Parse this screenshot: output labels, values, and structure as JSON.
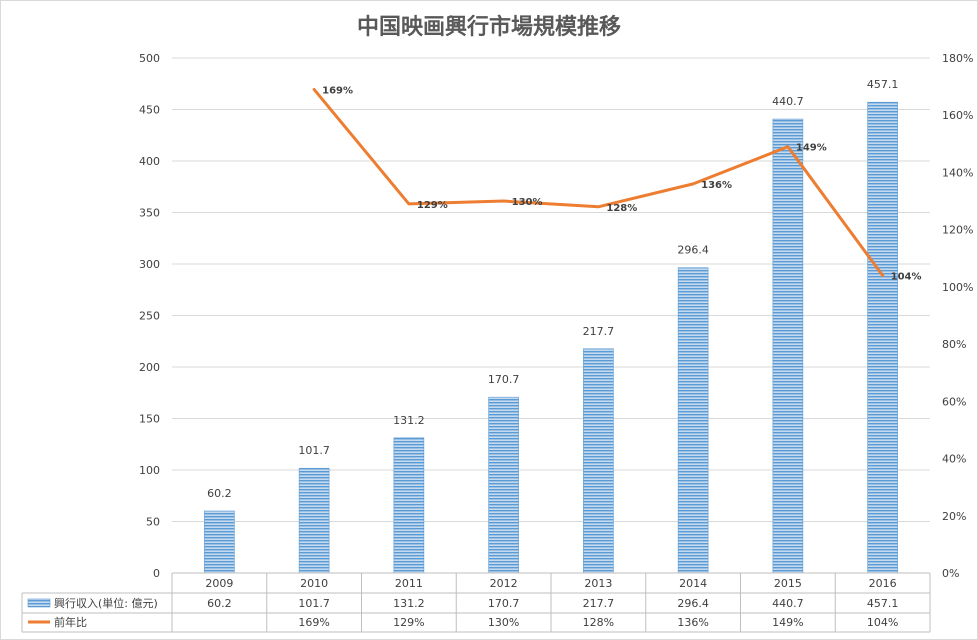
{
  "chart_data": {
    "type": "bar",
    "title": "中国映画興行市場規模推移",
    "categories": [
      "2009",
      "2010",
      "2011",
      "2012",
      "2013",
      "2014",
      "2015",
      "2016"
    ],
    "series": [
      {
        "name": "興行収入(単位: 億元)",
        "type": "bar",
        "axis": "left",
        "values": [
          60.2,
          101.7,
          131.2,
          170.7,
          217.7,
          296.4,
          440.7,
          457.1
        ],
        "labels": [
          "60.2",
          "101.7",
          "131.2",
          "170.7",
          "217.7",
          "296.4",
          "440.7",
          "457.1"
        ],
        "color": "#5b9bd5"
      },
      {
        "name": "前年比",
        "type": "line",
        "axis": "right",
        "values": [
          null,
          169,
          129,
          130,
          128,
          136,
          149,
          104
        ],
        "labels": [
          "",
          "169%",
          "129%",
          "130%",
          "128%",
          "136%",
          "149%",
          "104%"
        ],
        "color": "#ed7d31"
      }
    ],
    "y_left": {
      "min": 0,
      "max": 500,
      "ticks": [
        "0",
        "50",
        "100",
        "150",
        "200",
        "250",
        "300",
        "350",
        "400",
        "450",
        "500"
      ]
    },
    "y_right": {
      "min": 0,
      "max": 180,
      "ticks": [
        "0%",
        "20%",
        "40%",
        "60%",
        "80%",
        "100%",
        "120%",
        "140%",
        "160%",
        "180%"
      ]
    },
    "grid": true,
    "data_table": true,
    "legend": "in data table"
  }
}
